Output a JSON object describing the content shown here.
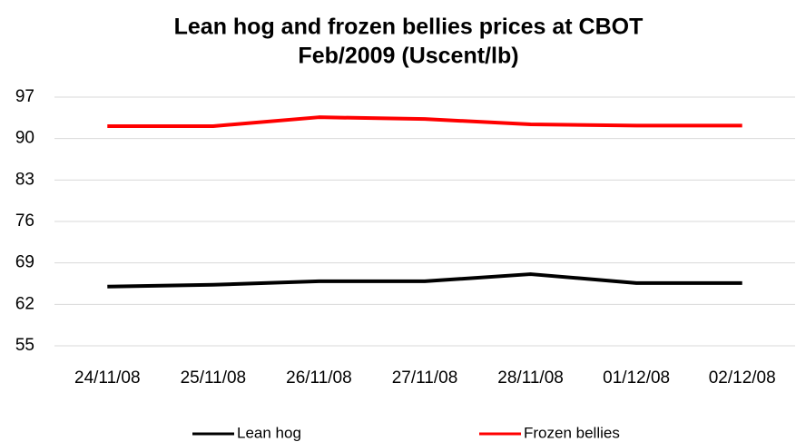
{
  "chart_data": {
    "type": "line",
    "title": [
      "Lean hog and frozen bellies prices at CBOT",
      "Feb/2009 (Uscent/lb)"
    ],
    "categories": [
      "24/11/08",
      "25/11/08",
      "26/11/08",
      "27/11/08",
      "28/11/08",
      "01/12/08",
      "02/12/08"
    ],
    "series": [
      {
        "name": "Lean hog",
        "color": "#000000",
        "values": [
          65.0,
          65.3,
          65.9,
          65.9,
          67.1,
          65.6,
          65.6
        ]
      },
      {
        "name": "Frozen bellies",
        "color": "#ff0000",
        "values": [
          92.1,
          92.1,
          93.6,
          93.3,
          92.4,
          92.2,
          92.2
        ]
      }
    ],
    "ylim": [
      55,
      97
    ],
    "yticks": [
      55,
      62,
      69,
      76,
      83,
      90,
      97
    ],
    "grid": true,
    "legend": "bottom"
  }
}
